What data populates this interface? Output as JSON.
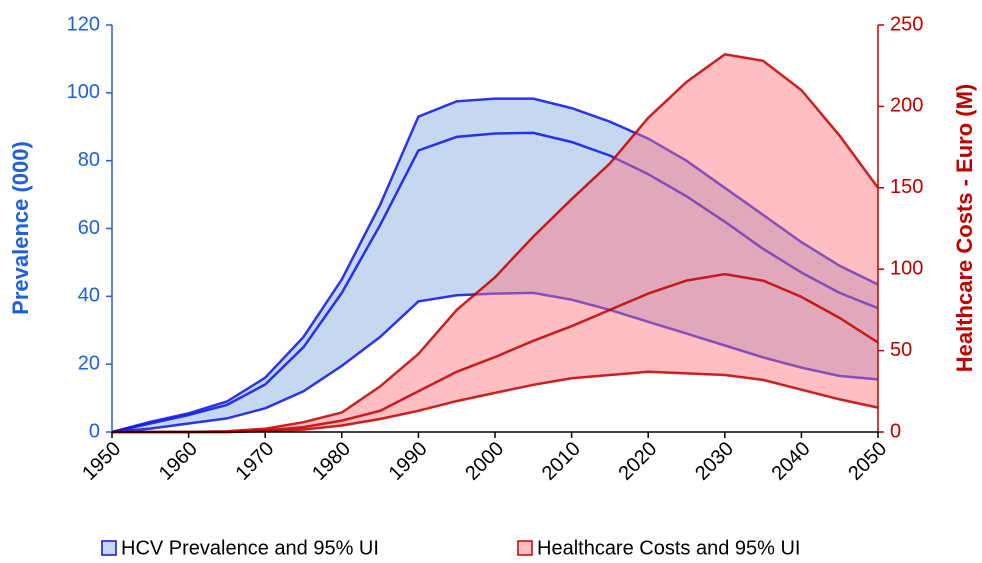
{
  "chart_data": {
    "type": "band",
    "x": [
      1950,
      1955,
      1960,
      1965,
      1970,
      1975,
      1980,
      1985,
      1990,
      1995,
      2000,
      2005,
      2010,
      2015,
      2020,
      2025,
      2030,
      2035,
      2040,
      2045,
      2050
    ],
    "xlim": [
      1950,
      2050
    ],
    "xticks": [
      1950,
      1960,
      1970,
      1980,
      1990,
      2000,
      2010,
      2020,
      2030,
      2040,
      2050
    ],
    "ylabel": "Prevalence (000)",
    "ylim": [
      0,
      120
    ],
    "yticks": [
      0,
      20,
      40,
      60,
      80,
      100,
      120
    ],
    "y2label": "Healthcare Costs - Euro (M)",
    "y2lim": [
      0,
      250
    ],
    "y2ticks": [
      0,
      50,
      100,
      150,
      200,
      250
    ],
    "series": [
      {
        "name": "HCV Prevalence and 95% UI",
        "color": "#0a14e6",
        "fill": "#c6d8f0",
        "axis": "y",
        "values": [
          0,
          2.5,
          5,
          8,
          14,
          25,
          41,
          61,
          83,
          87,
          88,
          88.2,
          85.5,
          81.5,
          76,
          69.5,
          62,
          54,
          47,
          41,
          36.5
        ],
        "lower": [
          0,
          1,
          2.5,
          4,
          7,
          12,
          19.5,
          28,
          38.5,
          40.3,
          40.8,
          41,
          39,
          36,
          32.5,
          29,
          25.5,
          22,
          19,
          16.5,
          15.5
        ],
        "upper": [
          0,
          3,
          5.5,
          9,
          16,
          28,
          45,
          67,
          93,
          97.5,
          98.3,
          98.3,
          95.5,
          91.5,
          86.5,
          80,
          72,
          64,
          56,
          49,
          43.5
        ]
      },
      {
        "name": "Healthcare Costs and 95% UI",
        "color": "#c00000",
        "fill": "#ff6e78",
        "axis": "y2",
        "values": [
          0,
          0,
          0,
          0,
          1,
          3,
          7,
          13,
          25,
          37,
          46,
          56,
          65,
          75,
          85,
          93,
          97,
          93,
          83,
          70,
          55
        ],
        "lower": [
          0,
          0,
          0,
          0,
          0.5,
          1.5,
          4,
          8,
          13,
          19,
          24,
          29,
          33,
          35,
          37,
          36,
          35,
          32,
          26,
          20,
          15
        ],
        "upper": [
          0,
          0,
          0,
          0.5,
          2,
          6,
          12,
          28,
          48,
          75,
          95,
          120,
          143,
          165,
          193,
          215,
          232,
          228,
          210,
          182,
          150
        ]
      }
    ]
  }
}
